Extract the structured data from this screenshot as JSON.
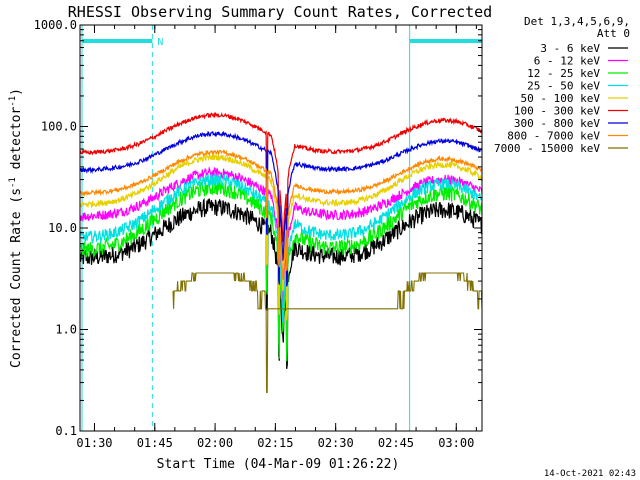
{
  "chart_data": {
    "type": "line",
    "title": "RHESSI Observing Summary Count Rates, Corrected",
    "xlabel": "Start Time (04-Mar-09 01:26:22)",
    "ylabel": "Corrected Count Rate (s⁻¹ detector⁻¹)",
    "y_scale": "log",
    "ylim": [
      0.1,
      1000
    ],
    "xlim_minutes": [
      0,
      100
    ],
    "x_tick_labels": [
      "01:30",
      "01:45",
      "02:00",
      "02:15",
      "02:30",
      "02:45",
      "03:00"
    ],
    "x_tick_minutes": [
      3.6,
      18.6,
      33.6,
      48.6,
      63.6,
      78.6,
      93.6
    ],
    "y_tick_labels": [
      "0.1",
      "1.0",
      "10.0",
      "100.0",
      "1000.0"
    ],
    "y_tick_values": [
      0.1,
      1,
      10,
      100,
      1000
    ],
    "grid": false,
    "legend_header": [
      "Det 1,3,4,5,6,9,",
      "Att 0"
    ],
    "legend_placement": "right",
    "footer_date": "14-Oct-2021 02:43",
    "annotations": {
      "bars": [
        {
          "x0": 0.5,
          "x1": 18,
          "label": "N"
        },
        {
          "x0": 82,
          "x1": 100,
          "label": ""
        }
      ],
      "night_markers_dashed": [
        18,
        100
      ],
      "day_markers_solid": [
        0.5,
        82
      ],
      "color": "#22dddd"
    },
    "dip": {
      "center": 50.5,
      "halfwidth": 3,
      "spikes": [
        46.5,
        49.5,
        51.5
      ]
    },
    "series": [
      {
        "name": "3 - 6 keV",
        "color": "#000000",
        "base": 5,
        "peak1": 16,
        "peak2": 15,
        "noise": 0.09
      },
      {
        "name": "6 - 12 keV",
        "color": "#ff00ff",
        "base": 13,
        "peak1": 35,
        "peak2": 30,
        "noise": 0.05
      },
      {
        "name": "12 - 25 keV",
        "color": "#00ee00",
        "base": 6,
        "peak1": 25,
        "peak2": 22,
        "noise": 0.08
      },
      {
        "name": "25 - 50 keV",
        "color": "#00e0e0",
        "base": 8,
        "peak1": 30,
        "peak2": 27,
        "noise": 0.06
      },
      {
        "name": "50 - 100 keV",
        "color": "#e8d000",
        "base": 17,
        "peak1": 50,
        "peak2": 42,
        "noise": 0.03
      },
      {
        "name": "100 - 300 keV",
        "color": "#ee0000",
        "base": 55,
        "peak1": 130,
        "peak2": 115,
        "noise": 0.02
      },
      {
        "name": "300 - 800 keV",
        "color": "#0000dd",
        "base": 37,
        "peak1": 85,
        "peak2": 72,
        "noise": 0.02
      },
      {
        "name": "800 - 7000 keV",
        "color": "#ff8800",
        "base": 22,
        "peak1": 56,
        "peak2": 48,
        "noise": 0.02
      },
      {
        "name": "7000 - 15000 keV",
        "color": "#807000",
        "base": 1.0,
        "peak1": 3.5,
        "peak2": 3.0,
        "noise": 0.0,
        "stepped": true
      }
    ]
  }
}
